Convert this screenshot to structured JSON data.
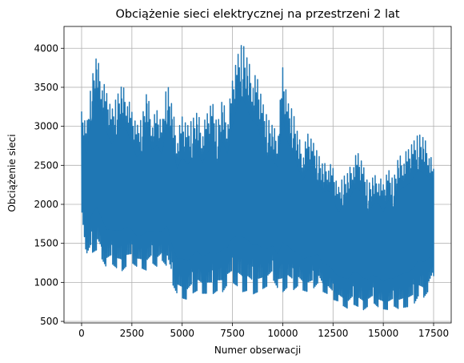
{
  "chart_data": {
    "type": "line",
    "title": "Obciążenie sieci elektrycznej na przestrzeni 2 lat",
    "xlabel": "Numer obserwacji",
    "ylabel": "Obciążenie sieci",
    "xlim": [
      -875,
      18375
    ],
    "ylim": [
      480,
      4280
    ],
    "xticks": [
      0,
      2500,
      5000,
      7500,
      10000,
      12500,
      15000,
      17500
    ],
    "xtick_labels": [
      "0",
      "2500",
      "5000",
      "7500",
      "10000",
      "12500",
      "15000",
      "17500"
    ],
    "yticks": [
      500,
      1000,
      1500,
      2000,
      2500,
      3000,
      3500,
      4000
    ],
    "ytick_labels": [
      "500",
      "1000",
      "1500",
      "2000",
      "2500",
      "3000",
      "3500",
      "4000"
    ],
    "grid": true,
    "colors": {
      "series": "#1f77b4",
      "grid": "#b0b0b0",
      "axes": "#000000"
    },
    "series": [
      {
        "x_start": 0,
        "x_step": 250,
        "min": [
          1900,
          1270,
          1380,
          1420,
          1300,
          1180,
          1240,
          1180,
          1150,
          1220,
          1250,
          1200,
          1180,
          1150,
          1250,
          1200,
          1280,
          1200,
          980,
          850,
          800,
          780,
          860,
          900,
          860,
          860,
          850,
          900,
          880,
          980,
          1000,
          950,
          880,
          900,
          850,
          880,
          920,
          960,
          1040,
          920,
          880,
          950,
          900,
          960,
          900,
          880,
          920,
          1000,
          880,
          850,
          780,
          760,
          700,
          660,
          720,
          690,
          650,
          700,
          740,
          680,
          660,
          650,
          700,
          660,
          680,
          690,
          720,
          840,
          810,
          900,
          1080
        ],
        "max": [
          3190,
          3000,
          3600,
          3900,
          3650,
          3420,
          3200,
          3380,
          3520,
          3440,
          3180,
          3000,
          3100,
          3450,
          3100,
          3200,
          3020,
          3580,
          3250,
          2900,
          3120,
          3000,
          3080,
          3180,
          3000,
          3160,
          3320,
          3000,
          3350,
          3120,
          3580,
          3900,
          4080,
          3850,
          3700,
          3600,
          3300,
          3100,
          3000,
          2920,
          3750,
          3300,
          3200,
          2900,
          2700,
          2900,
          2800,
          2650,
          2500,
          2560,
          2460,
          2200,
          2350,
          2400,
          2600,
          2650,
          2500,
          2250,
          2350,
          2400,
          2250,
          2450,
          2300,
          2600,
          2650,
          2700,
          2800,
          2900,
          2850,
          2750,
          2450
        ]
      }
    ]
  }
}
